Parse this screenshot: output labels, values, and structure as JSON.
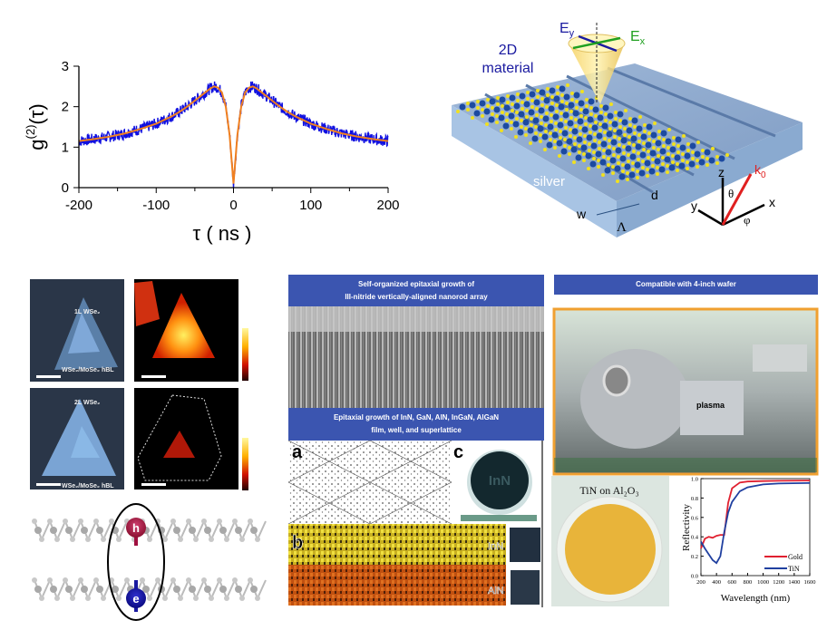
{
  "g2_plot": {
    "ylabel_main": "g",
    "ylabel_sup": "(2)",
    "ylabel_arg": "(τ)",
    "xlabel": "τ ( ns )",
    "xticks": [
      "-200",
      "-100",
      "0",
      "100",
      "200"
    ],
    "yticks": [
      "0",
      "1",
      "2",
      "3"
    ]
  },
  "device_diagram": {
    "material_label_line1": "2D",
    "material_label_line2": "material",
    "ey_main": "E",
    "ey_sub": "y",
    "ex_main": "E",
    "ex_sub": "x",
    "substrate_label": "silver",
    "w_label": "w",
    "d_label": "d",
    "period_label": "Λ",
    "axis_z": "z",
    "axis_x": "x",
    "axis_y": "y",
    "theta": "θ",
    "phi": "φ",
    "k_main": "k",
    "k_sub": "0"
  },
  "optical_panels": {
    "top_label_1": "1L WSe₂",
    "top_label_2": "WSe₂/MoSe₂ hBL",
    "bottom_label_1": "2L WSe₂",
    "bottom_label_2": "WSe₂/MoSe₂ hBL"
  },
  "bilayer_schematic": {
    "hole_label": "h",
    "electron_label": "e"
  },
  "nitride_panel": {
    "header1_line1": "Self-organized epitaxial growth of",
    "header1_line2": "III-nitride vertically-aligned  nanorod array",
    "header2_line1": "Epitaxial growth of InN, GaN, AlN, InGaN, AlGaN",
    "header2_line2": "film, well, and  superlattice",
    "label_a": "a",
    "label_b": "b",
    "label_c": "c",
    "wafer_text": "InN",
    "layer_top": "InN",
    "layer_bottom": "AlN"
  },
  "tin_panel": {
    "header": "Compatible with 4-inch wafer",
    "plasma_label": "plasma",
    "sample_label": "TiN on Al₂O₃"
  },
  "colors": {
    "data_blue": "#1010e0",
    "fit_orange": "#f08020",
    "header_blue": "#3b55b0",
    "gold_red": "#e02030",
    "tin_blue": "#2040a0"
  },
  "chart_data": [
    {
      "type": "line",
      "title": "",
      "xlabel": "τ ( ns )",
      "ylabel": "g(2)(τ)",
      "xlim": [
        -200,
        200
      ],
      "ylim": [
        0,
        3
      ],
      "x": [
        -200,
        -180,
        -160,
        -140,
        -120,
        -100,
        -80,
        -70,
        -60,
        -50,
        -40,
        -30,
        -25,
        -20,
        -15,
        -10,
        -5,
        0,
        5,
        10,
        15,
        20,
        25,
        30,
        40,
        50,
        60,
        70,
        80,
        100,
        120,
        140,
        160,
        180,
        200
      ],
      "series": [
        {
          "name": "fit",
          "values": [
            1.15,
            1.2,
            1.26,
            1.34,
            1.45,
            1.58,
            1.76,
            1.87,
            2.0,
            2.15,
            2.3,
            2.45,
            2.5,
            2.47,
            2.35,
            2.0,
            1.3,
            0.1,
            1.3,
            2.0,
            2.35,
            2.47,
            2.5,
            2.45,
            2.3,
            2.15,
            2.0,
            1.87,
            1.76,
            1.58,
            1.45,
            1.34,
            1.26,
            1.2,
            1.15
          ]
        }
      ],
      "note_series": "measured data (blue, noisy) scatters around fit"
    },
    {
      "type": "line",
      "xlabel": "Wavelength (nm)",
      "ylabel": "Reflectivity",
      "xlim": [
        200,
        1600
      ],
      "ylim": [
        0.0,
        1.0
      ],
      "xticks": [
        "200",
        "400",
        "600",
        "800",
        "1000",
        "1200",
        "1400",
        "1600"
      ],
      "yticks": [
        "0.0",
        "0.2",
        "0.4",
        "0.6",
        "0.8",
        "1.0"
      ],
      "legend": "bottom-right",
      "x": [
        200,
        250,
        300,
        350,
        400,
        450,
        500,
        550,
        600,
        700,
        800,
        1000,
        1200,
        1600
      ],
      "series": [
        {
          "name": "Gold",
          "values": [
            0.28,
            0.38,
            0.4,
            0.39,
            0.41,
            0.42,
            0.42,
            0.75,
            0.9,
            0.96,
            0.97,
            0.975,
            0.978,
            0.98
          ]
        },
        {
          "name": "TiN",
          "values": [
            0.35,
            0.28,
            0.22,
            0.16,
            0.13,
            0.2,
            0.45,
            0.65,
            0.76,
            0.87,
            0.91,
            0.94,
            0.95,
            0.955
          ]
        }
      ]
    }
  ]
}
